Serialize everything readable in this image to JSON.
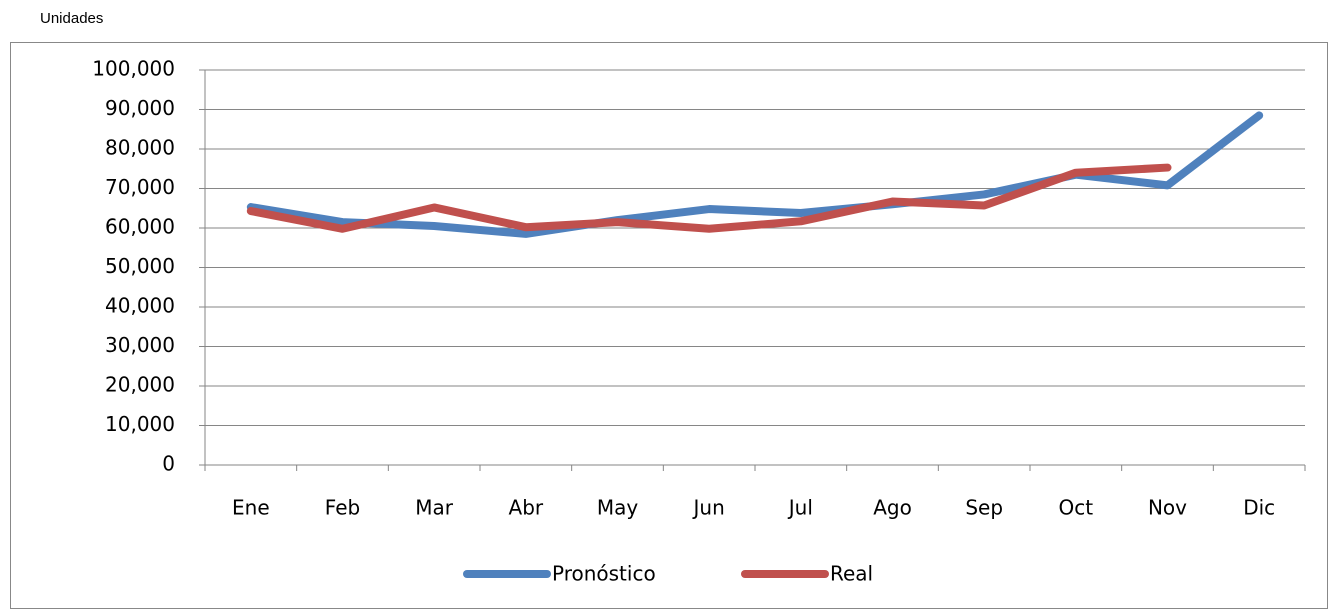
{
  "chart_data": {
    "type": "line",
    "ylabel": "Unidades",
    "categories": [
      "Ene",
      "Feb",
      "Mar",
      "Abr",
      "May",
      "Jun",
      "Jul",
      "Ago",
      "Sep",
      "Oct",
      "Nov",
      "Dic"
    ],
    "series": [
      {
        "name": "Pronóstico",
        "color": "#4f81bd",
        "values": [
          65300,
          61500,
          60500,
          58500,
          62000,
          64800,
          63800,
          66000,
          68500,
          73500,
          70800,
          88500
        ]
      },
      {
        "name": "Real",
        "color": "#c0504d",
        "values": [
          64300,
          59800,
          65200,
          60200,
          61500,
          59800,
          61700,
          66700,
          65700,
          74000,
          75300,
          null
        ]
      }
    ],
    "ylim": [
      0,
      100000
    ],
    "yticks": [
      0,
      {
        "value": 10000,
        "label": "10,000"
      },
      {
        "value": 20000,
        "label": "20,000"
      },
      {
        "value": 30000,
        "label": "30,000"
      },
      {
        "value": 40000,
        "label": "40,000"
      },
      {
        "value": 50000,
        "label": "50,000"
      },
      {
        "value": 60000,
        "label": "60,000"
      },
      {
        "value": 70000,
        "label": "70,000"
      },
      {
        "value": 80000,
        "label": "80,000"
      },
      {
        "value": 90000,
        "label": "90,000"
      },
      {
        "value": 100000,
        "label": "100,000"
      }
    ],
    "grid": true,
    "legend": "bottom"
  }
}
